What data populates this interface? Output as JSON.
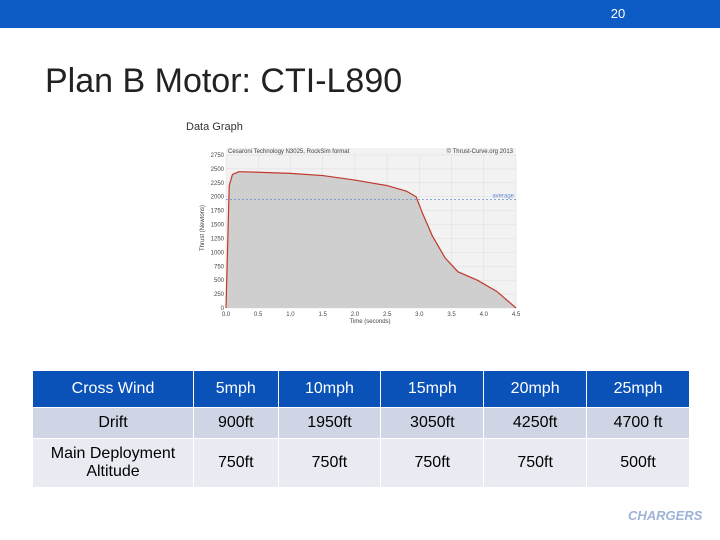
{
  "page_number": "20",
  "title": "Plan B Motor: CTI-L890",
  "chart_data": {
    "type": "area",
    "title": "Data Graph",
    "subtitle": "Cesaroni Technology N3025, RockSim format",
    "credit": "© Thrust-Curve.org 2013",
    "x_label": "Time (seconds)",
    "y_label": "Thrust (Newtons)",
    "x": [
      0,
      0.05,
      0.1,
      0.2,
      0.5,
      1.0,
      1.5,
      2.0,
      2.5,
      2.8,
      2.95,
      3.05,
      3.2,
      3.4,
      3.6,
      3.9,
      4.2,
      4.4,
      4.5
    ],
    "values": [
      0,
      2200,
      2400,
      2450,
      2440,
      2420,
      2380,
      2300,
      2200,
      2100,
      2000,
      1700,
      1300,
      900,
      650,
      500,
      300,
      100,
      0
    ],
    "color": "#c0392b",
    "average_label": "average",
    "average": 1950,
    "xlim": [
      0,
      4.5
    ],
    "ylim": [
      0,
      2750
    ],
    "xticks": [
      {
        "value": 0,
        "label": "0.0"
      },
      0.5,
      {
        "value": 1,
        "label": "1.0"
      },
      1.5,
      {
        "value": 2,
        "label": "2.0"
      },
      2.5,
      {
        "value": 3,
        "label": "3.0"
      },
      3.5,
      {
        "value": 4,
        "label": "4.0"
      },
      4.5
    ],
    "yticks": [
      0,
      250,
      500,
      750,
      1000,
      1250,
      1500,
      1750,
      2000,
      2250,
      2500,
      2750
    ],
    "grid": true
  },
  "table": {
    "rows": [
      [
        "Cross Wind",
        "5mph",
        "10mph",
        "15mph",
        "20mph",
        "25mph"
      ],
      [
        "Drift",
        "900ft",
        "1950ft",
        "3050ft",
        "4250ft",
        "4700 ft"
      ],
      [
        "Main Deployment Altitude",
        "750ft",
        "750ft",
        "750ft",
        "750ft",
        "500ft"
      ]
    ]
  },
  "logo_text": "CHARGERS"
}
